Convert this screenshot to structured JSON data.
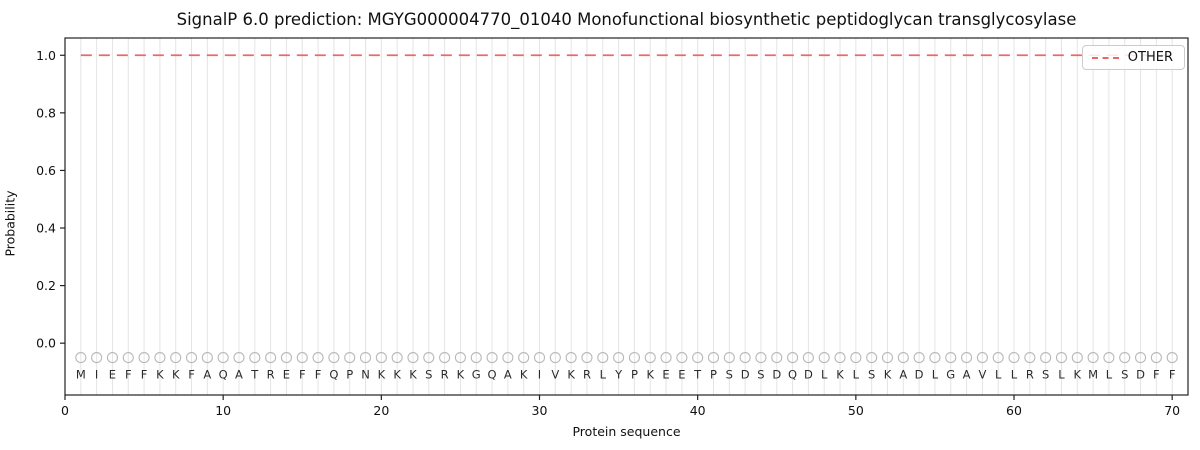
{
  "chart_data": {
    "type": "line",
    "title": "SignalP 6.0 prediction: MGYG000004770_01040 Monofunctional biosynthetic peptidoglycan transglycosylase",
    "xlabel": "Protein sequence",
    "ylabel": "Probability",
    "xlim": [
      0,
      71
    ],
    "ylim": [
      -0.18,
      1.06
    ],
    "xticks": [
      0,
      10,
      20,
      30,
      40,
      50,
      60,
      70
    ],
    "yticks": [
      0.0,
      0.2,
      0.4,
      0.6,
      0.8,
      1.0
    ],
    "grid": "vertical line at every residue position, light gray",
    "legend_position": "upper right",
    "sequence": "MIEFFKKFAQATREFFQPNKKKSRKGQAKIVKRLYPKEETPSDSDQDLKLSKADLGAVLLRSLKMLSDFF",
    "x_start": 1,
    "series": [
      {
        "name": "OTHER",
        "color": "#e66a6a",
        "line_style": "dashed",
        "values": [
          1.0,
          1.0,
          1.0,
          1.0,
          1.0,
          1.0,
          1.0,
          1.0,
          1.0,
          1.0,
          1.0,
          1.0,
          1.0,
          1.0,
          1.0,
          1.0,
          1.0,
          1.0,
          1.0,
          1.0,
          1.0,
          1.0,
          1.0,
          1.0,
          1.0,
          1.0,
          1.0,
          1.0,
          1.0,
          1.0,
          1.0,
          1.0,
          1.0,
          1.0,
          1.0,
          1.0,
          1.0,
          1.0,
          1.0,
          1.0,
          1.0,
          1.0,
          1.0,
          1.0,
          1.0,
          1.0,
          1.0,
          1.0,
          1.0,
          1.0,
          1.0,
          1.0,
          1.0,
          1.0,
          1.0,
          1.0,
          1.0,
          1.0,
          1.0,
          1.0,
          1.0,
          1.0,
          1.0,
          1.0,
          1.0,
          1.0,
          1.0,
          1.0,
          1.0,
          1.0
        ]
      }
    ],
    "residue_markers": {
      "shape": "open-circle",
      "color": "#b8b8b8",
      "y_value": -0.05
    }
  }
}
